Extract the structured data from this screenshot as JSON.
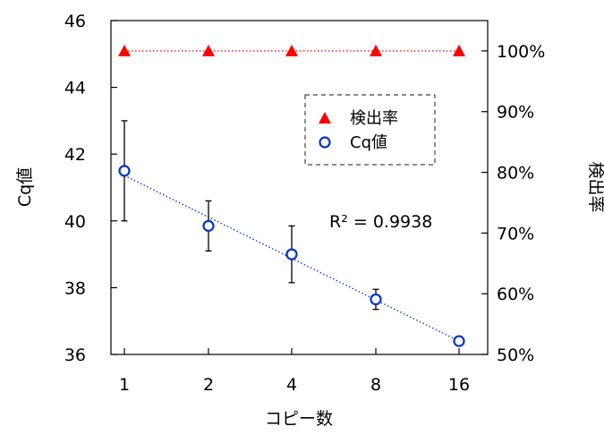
{
  "chart_data": {
    "type": "scatter",
    "title": "",
    "xlabel": "コピー数",
    "ylabel_left": "Cq値",
    "ylabel_right": "検出率",
    "x_scale": "log2",
    "categories": [
      "1",
      "2",
      "4",
      "8",
      "16"
    ],
    "x": [
      1,
      2,
      4,
      8,
      16
    ],
    "ylim_left": [
      36,
      46
    ],
    "yticks_left": [
      "36",
      "38",
      "40",
      "42",
      "44",
      "46"
    ],
    "ylim_right": [
      0.5,
      1.05
    ],
    "yticks_right": [
      "50%",
      "60%",
      "70%",
      "80%",
      "90%",
      "100%"
    ],
    "series": [
      {
        "name": "検出率",
        "axis": "right",
        "marker": "filled-triangle",
        "color": "#ff0000",
        "line": "dotted",
        "values": [
          1.0,
          1.0,
          1.0,
          1.0,
          1.0
        ]
      },
      {
        "name": "Cq値",
        "axis": "left",
        "marker": "open-circle",
        "color": "#0033cc",
        "values": [
          41.5,
          39.85,
          39.0,
          37.65,
          36.4
        ],
        "error": [
          1.5,
          0.75,
          0.85,
          0.3,
          0.1
        ],
        "trendline": {
          "type": "linear-in-log2-x",
          "color": "#0033cc",
          "style": "dotted"
        }
      }
    ],
    "annotations": [
      "R² = 0.9938"
    ],
    "legend": {
      "placement": "top-right-inside",
      "border": "dashed"
    },
    "grid": false
  }
}
